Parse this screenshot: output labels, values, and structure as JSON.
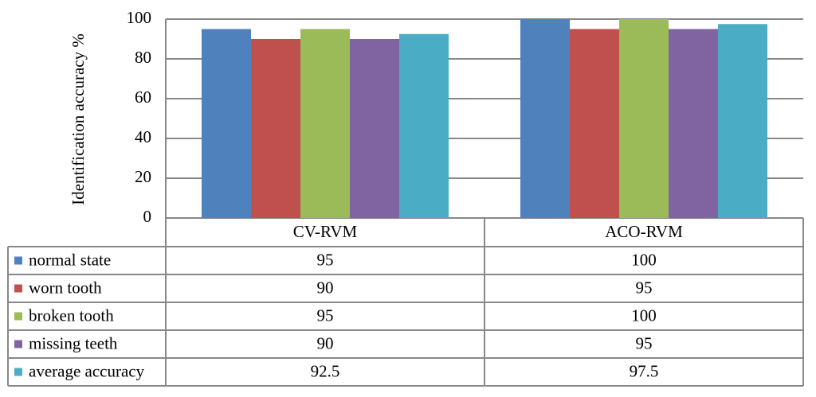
{
  "chart_data": {
    "type": "bar",
    "y_label": "Identification accuracy %",
    "categories": [
      "CV-RVM",
      "ACO-RVM"
    ],
    "series": [
      {
        "name": "normal state",
        "color": "#4f81bd",
        "values": [
          95,
          100
        ]
      },
      {
        "name": "worn tooth",
        "color": "#c0504d",
        "values": [
          90,
          95
        ]
      },
      {
        "name": "broken tooth",
        "color": "#9bbb59",
        "values": [
          95,
          100
        ]
      },
      {
        "name": "missing teeth",
        "color": "#8064a2",
        "values": [
          90,
          95
        ]
      },
      {
        "name": "average accuracy",
        "color": "#4bacc6",
        "values": [
          92.5,
          97.5
        ]
      }
    ],
    "ylim": [
      0,
      100
    ],
    "yticks": [
      0,
      20,
      40,
      60,
      80,
      100
    ],
    "grid": true
  }
}
